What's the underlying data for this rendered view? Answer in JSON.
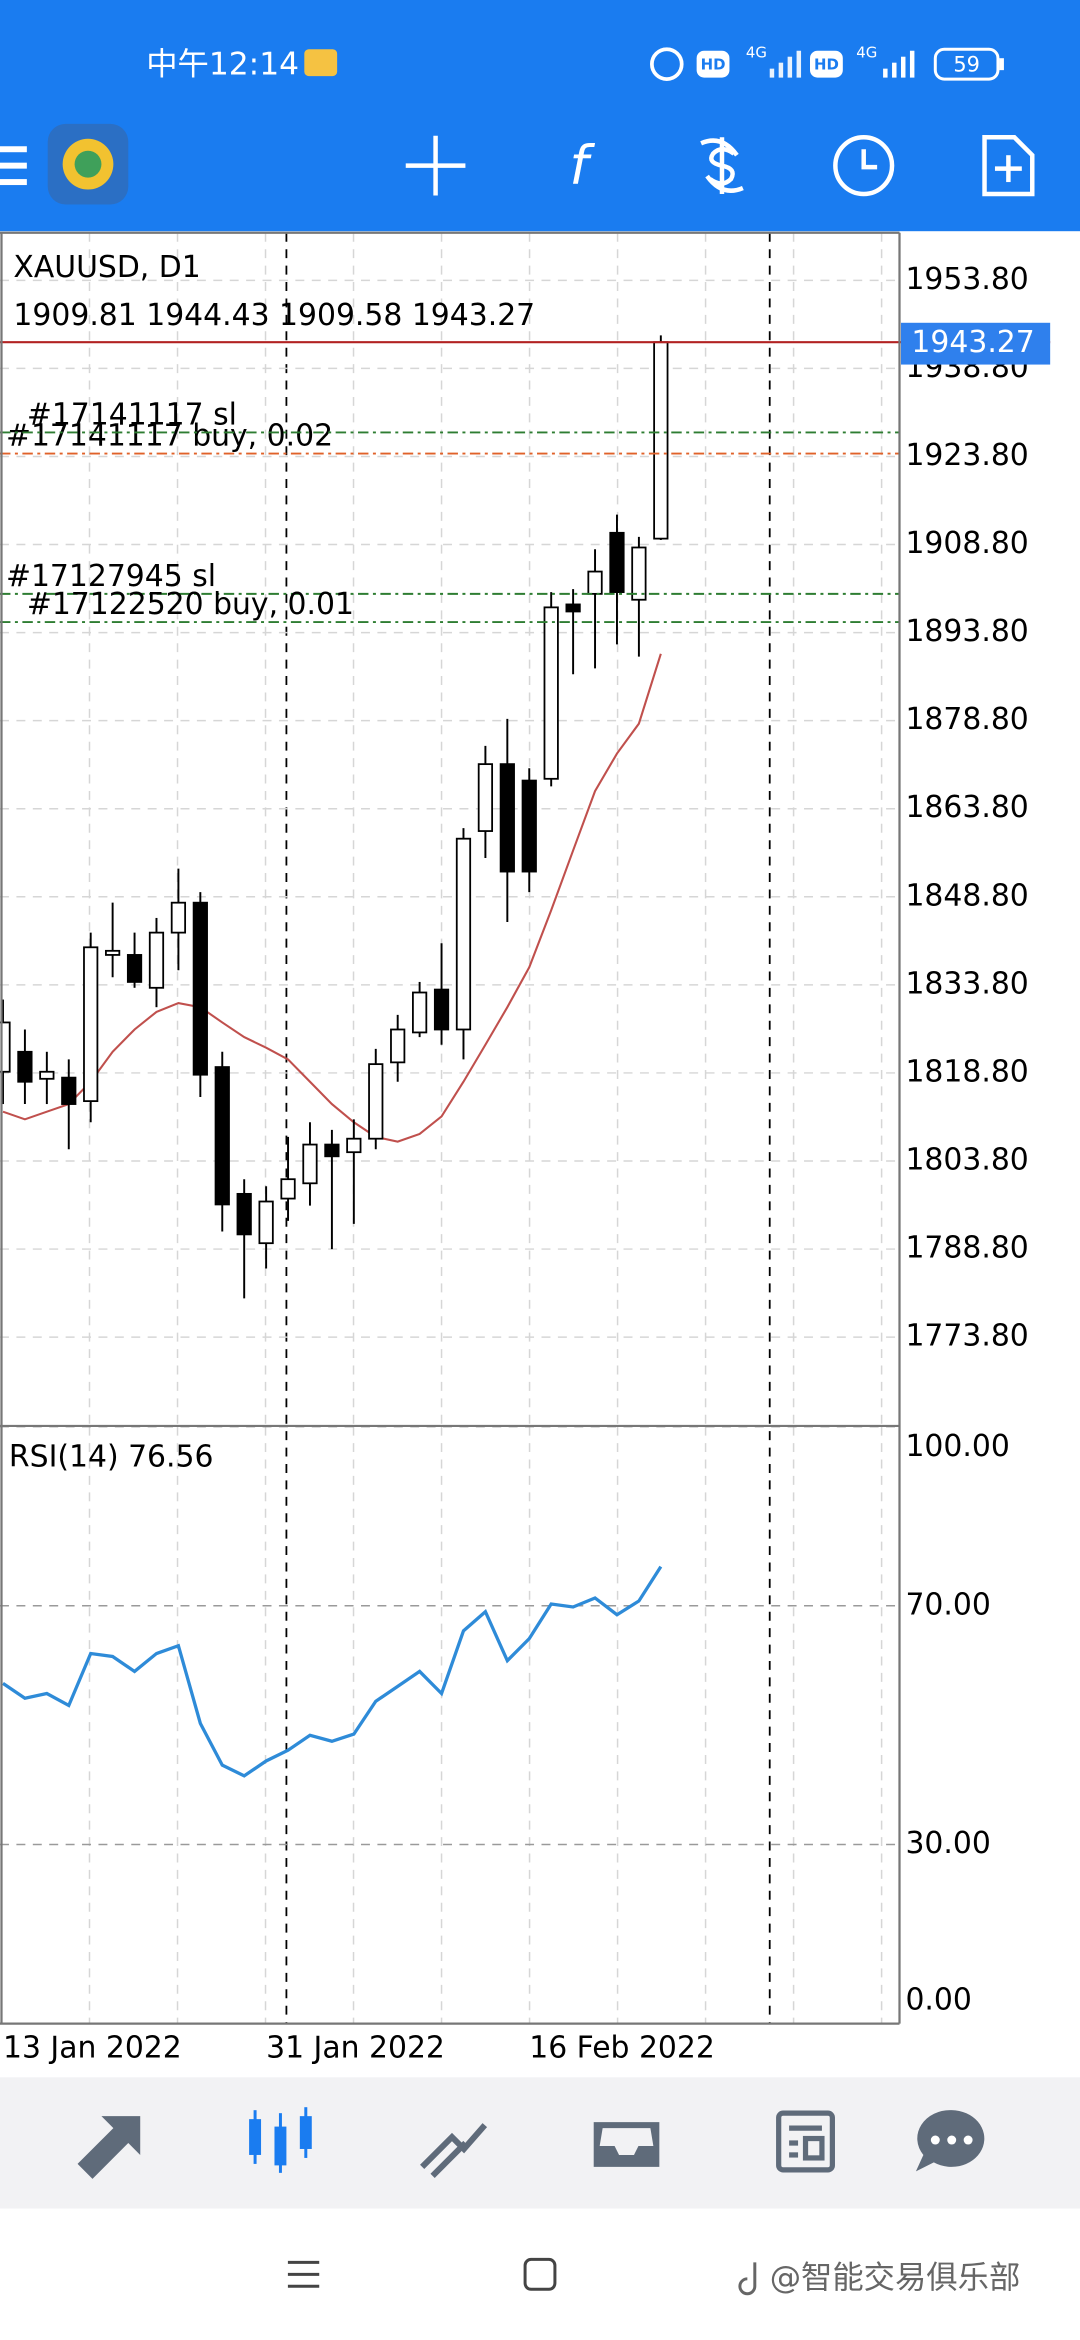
{
  "status_bar": {
    "time": "中午12:14",
    "hd_1": "HD",
    "network_1": "4G",
    "hd_2": "HD",
    "network_2": "4G",
    "battery": "59"
  },
  "toolbar": {
    "function_icon": "f"
  },
  "chart_data": [
    {
      "type": "candlestick",
      "title": "XAUUSD, D1",
      "ohlc_label": "1909.81 1944.43 1909.58 1943.27",
      "categories": [
        "13 Jan 2022",
        null,
        null,
        null,
        null,
        null,
        null,
        null,
        null,
        null,
        null,
        null,
        "31 Jan 2022",
        null,
        null,
        null,
        null,
        null,
        null,
        null,
        null,
        null,
        null,
        null,
        "16 Feb 2022",
        null,
        null,
        null,
        null,
        null,
        null
      ],
      "open": [
        1819.0,
        1822.4,
        1817.8,
        1818.0,
        1814.0,
        1838.9,
        1838.9,
        1833.3,
        1842.7,
        1847.8,
        1819.8,
        1798.2,
        1789.8,
        1797.4,
        1800.0,
        1806.6,
        1805.3,
        1807.6,
        1820.6,
        1825.7,
        1833.0,
        1826.2,
        1860.0,
        1871.4,
        1868.6,
        1868.9,
        1898.6,
        1900.4,
        1910.8,
        1899.4,
        1909.81
      ],
      "high": [
        1831.3,
        1826.2,
        1822.4,
        1821.1,
        1842.7,
        1847.8,
        1842.7,
        1845.2,
        1853.6,
        1849.6,
        1822.4,
        1800.7,
        1799.5,
        1807.9,
        1810.4,
        1809.1,
        1810.9,
        1822.9,
        1828.7,
        1834.3,
        1840.9,
        1860.5,
        1874.5,
        1879.1,
        1870.7,
        1900.7,
        1901.2,
        1908.0,
        1913.9,
        1910.1,
        1944.43
      ],
      "low": [
        1813.5,
        1813.5,
        1813.5,
        1805.8,
        1810.4,
        1835.1,
        1833.3,
        1830.0,
        1836.3,
        1814.7,
        1791.8,
        1780.4,
        1785.5,
        1793.6,
        1796.2,
        1788.8,
        1793.1,
        1805.8,
        1817.3,
        1824.9,
        1823.6,
        1821.1,
        1855.4,
        1844.5,
        1849.6,
        1867.6,
        1886.7,
        1887.7,
        1891.8,
        1889.7,
        1909.58
      ],
      "close": [
        1827.4,
        1817.3,
        1819.0,
        1813.5,
        1840.2,
        1839.6,
        1834.3,
        1842.7,
        1847.8,
        1818.5,
        1796.4,
        1791.3,
        1796.9,
        1800.7,
        1806.6,
        1804.6,
        1807.6,
        1820.3,
        1826.2,
        1832.5,
        1826.2,
        1858.7,
        1871.4,
        1853.1,
        1853.1,
        1898.1,
        1897.4,
        1904.2,
        1900.7,
        1908.3,
        1943.27
      ],
      "up_color": "#ffffff",
      "down_color": "#000000",
      "moving_average": {
        "color": "#c0504d",
        "values": [
          1812.2,
          1810.9,
          1812.2,
          1813.5,
          1817.3,
          1822.4,
          1826.2,
          1829.2,
          1830.7,
          1830.0,
          1827.4,
          1824.9,
          1823.1,
          1821.1,
          1817.3,
          1813.5,
          1810.4,
          1807.9,
          1807.1,
          1808.4,
          1811.4,
          1817.3,
          1823.6,
          1830.0,
          1836.8,
          1846.5,
          1856.7,
          1866.8,
          1873.2,
          1878.3,
          1890.2
        ]
      },
      "ylim": [
        1758.8,
        1961.9
      ],
      "yticks": [
        {
          "value": 1773.8,
          "label": "1773.80"
        },
        {
          "value": 1788.8,
          "label": "1788.80"
        },
        {
          "value": 1803.8,
          "label": "1803.80"
        },
        {
          "value": 1818.8,
          "label": "1818.80"
        },
        {
          "value": 1833.8,
          "label": "1833.80"
        },
        {
          "value": 1848.8,
          "label": "1848.80"
        },
        {
          "value": 1863.8,
          "label": "1863.80"
        },
        {
          "value": 1878.8,
          "label": "1878.80"
        },
        {
          "value": 1893.8,
          "label": "1893.80"
        },
        {
          "value": 1908.8,
          "label": "1908.80"
        },
        {
          "value": 1923.8,
          "label": "1923.80"
        },
        {
          "value": 1938.8,
          "label": "1938.80"
        },
        {
          "value": 1953.8,
          "label": "1953.80"
        }
      ],
      "grid": true,
      "current_price": 1943.27,
      "current_price_color": "#2f80ed",
      "orders": [
        {
          "label": "#17141117 buy, 0.02",
          "price": 1924.3,
          "color": "#e0622a"
        },
        {
          "label": "#17141117 sl",
          "price": 1927.9,
          "color": "#2e7d32"
        },
        {
          "label": "#17127945 sl",
          "price": 1900.4,
          "color": "#2e7d32"
        },
        {
          "label": "#17122520 buy, 0.01",
          "price": 1895.6,
          "color": "#2e7d32"
        }
      ]
    },
    {
      "type": "line",
      "title": "RSI(14) 76.56",
      "color": "#2e8bd8",
      "values": [
        57.0,
        54.5,
        55.3,
        53.3,
        62.0,
        61.5,
        59.0,
        62.0,
        63.3,
        50.3,
        43.3,
        41.5,
        44.0,
        45.8,
        48.3,
        47.3,
        48.5,
        54.0,
        56.5,
        59.0,
        55.3,
        65.8,
        69.0,
        60.8,
        64.5,
        70.3,
        69.8,
        71.3,
        68.5,
        70.8,
        76.56
      ],
      "ylim": [
        0,
        100
      ],
      "yticks": [
        {
          "value": 0,
          "label": "0.00"
        },
        {
          "value": 30,
          "label": "30.00"
        },
        {
          "value": 70,
          "label": "70.00"
        },
        {
          "value": 100,
          "label": "100.00"
        }
      ],
      "grid": true
    }
  ],
  "watermark": "@智能交易俱乐部"
}
